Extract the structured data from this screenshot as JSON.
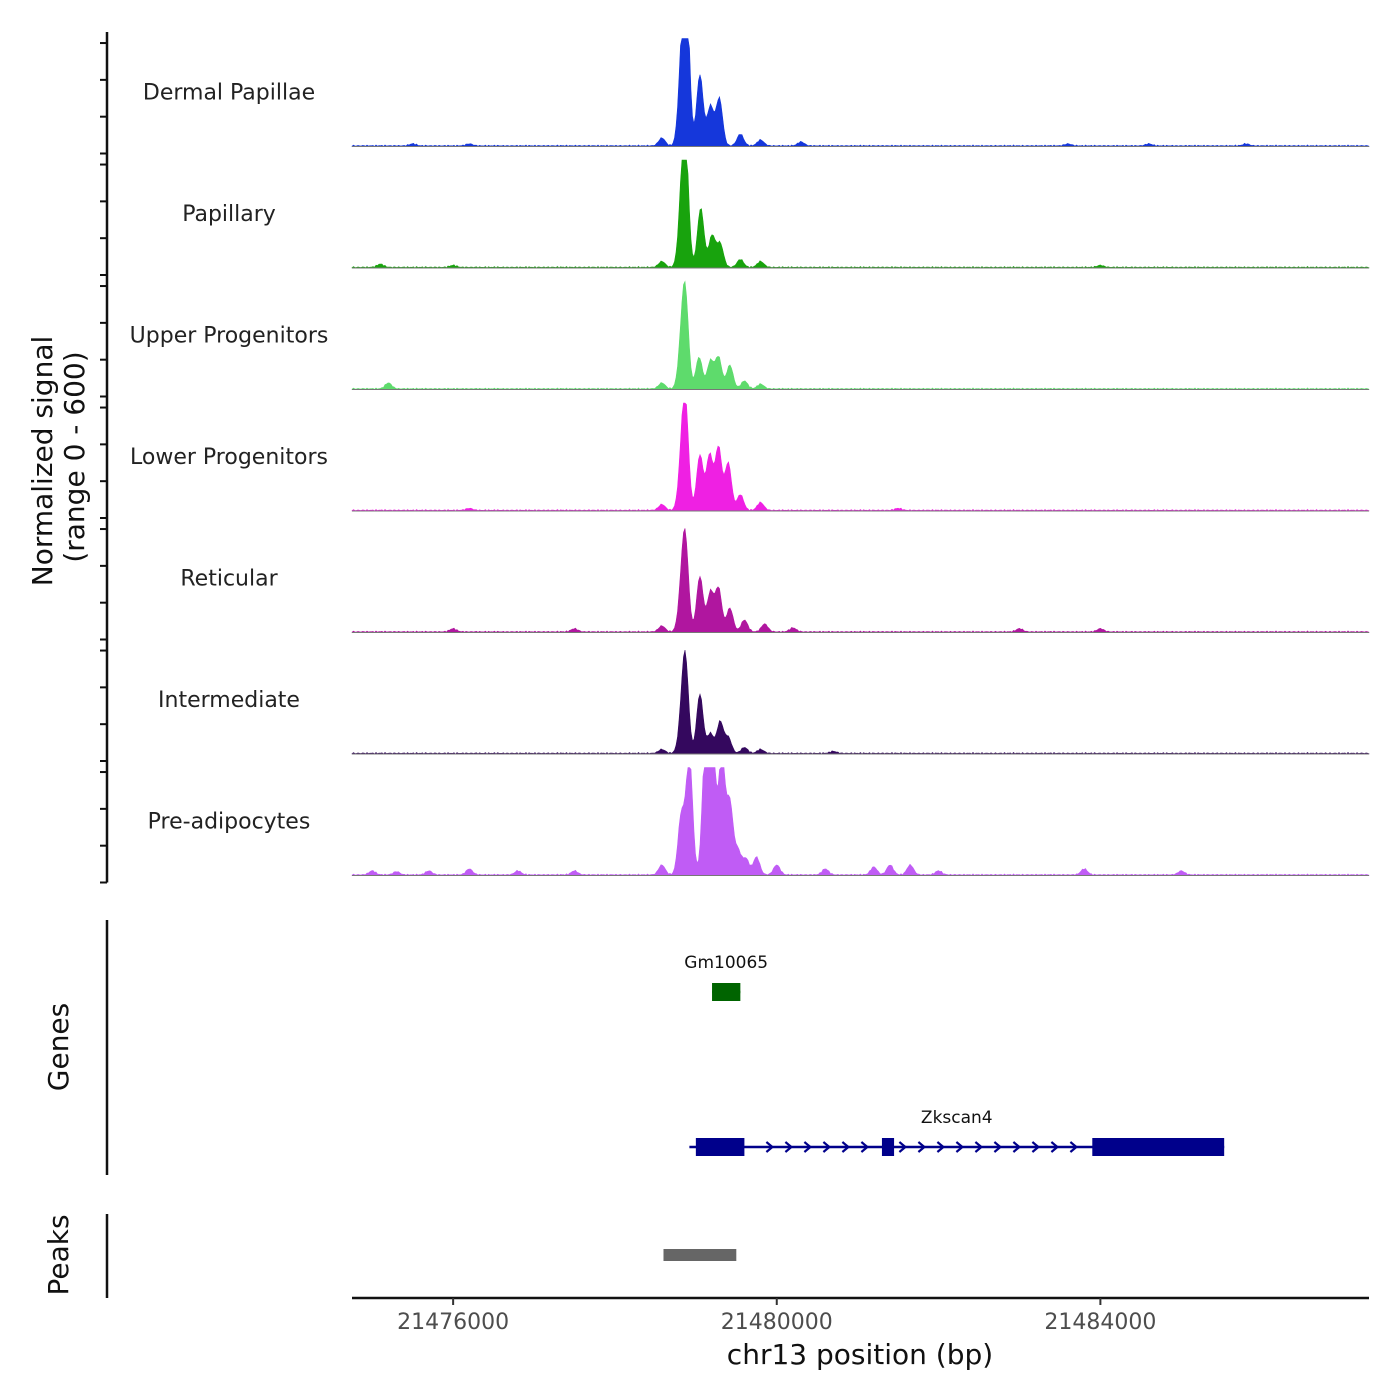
{
  "chart_data": {
    "type": "area",
    "chromosome": "chr13",
    "xlim": [
      21474750,
      21487320
    ],
    "xlabel": "chr13 position (bp)",
    "xticks": [
      21476000,
      21480000,
      21484000
    ],
    "ylabel": "Normalized signal",
    "ylabel_range": "(range 0 - 600)",
    "ylim": [
      0,
      600
    ],
    "tracks": [
      {
        "name": "Dermal Papillae",
        "color": "#1537db",
        "peaks": [
          [
            21478880,
            410
          ],
          [
            21478820,
            170
          ],
          [
            21479050,
            180
          ],
          [
            21479180,
            100
          ],
          [
            21479290,
            120
          ],
          [
            21479550,
            30
          ],
          [
            21479800,
            15
          ],
          [
            21480300,
            10
          ],
          [
            21478580,
            20
          ],
          [
            21475500,
            5
          ],
          [
            21476200,
            5
          ],
          [
            21483600,
            5
          ],
          [
            21484600,
            5
          ],
          [
            21485800,
            5
          ]
        ]
      },
      {
        "name": "Papillary",
        "color": "#18a30d",
        "peaks": [
          [
            21478870,
            310
          ],
          [
            21478820,
            120
          ],
          [
            21479060,
            150
          ],
          [
            21479200,
            80
          ],
          [
            21479300,
            60
          ],
          [
            21479550,
            20
          ],
          [
            21479800,
            15
          ],
          [
            21478580,
            15
          ],
          [
            21475100,
            8
          ],
          [
            21476000,
            5
          ],
          [
            21484000,
            5
          ]
        ]
      },
      {
        "name": "Upper Progenitors",
        "color": "#5edb6c",
        "peaks": [
          [
            21478870,
            225
          ],
          [
            21478820,
            90
          ],
          [
            21479040,
            80
          ],
          [
            21479180,
            70
          ],
          [
            21479280,
            80
          ],
          [
            21479420,
            60
          ],
          [
            21479600,
            20
          ],
          [
            21479800,
            12
          ],
          [
            21478580,
            15
          ],
          [
            21475200,
            15
          ]
        ]
      },
      {
        "name": "Lower Progenitors",
        "color": "#ef20e3",
        "peaks": [
          [
            21478870,
            260
          ],
          [
            21478820,
            90
          ],
          [
            21479050,
            140
          ],
          [
            21479170,
            140
          ],
          [
            21479280,
            160
          ],
          [
            21479400,
            120
          ],
          [
            21479550,
            40
          ],
          [
            21479800,
            20
          ],
          [
            21478580,
            15
          ],
          [
            21476200,
            5
          ],
          [
            21481500,
            5
          ]
        ]
      },
      {
        "name": "Reticular",
        "color": "#b0169f",
        "peaks": [
          [
            21478870,
            220
          ],
          [
            21478820,
            80
          ],
          [
            21479050,
            140
          ],
          [
            21479180,
            100
          ],
          [
            21479280,
            110
          ],
          [
            21479420,
            60
          ],
          [
            21479600,
            30
          ],
          [
            21479850,
            20
          ],
          [
            21480200,
            10
          ],
          [
            21478580,
            15
          ],
          [
            21476000,
            8
          ],
          [
            21477500,
            8
          ],
          [
            21483000,
            8
          ],
          [
            21484000,
            8
          ]
        ]
      },
      {
        "name": "Intermediate",
        "color": "#34085e",
        "peaks": [
          [
            21478870,
            230
          ],
          [
            21478820,
            60
          ],
          [
            21479050,
            150
          ],
          [
            21479180,
            50
          ],
          [
            21479300,
            80
          ],
          [
            21479400,
            40
          ],
          [
            21479600,
            15
          ],
          [
            21479800,
            10
          ],
          [
            21478580,
            10
          ],
          [
            21480700,
            5
          ]
        ]
      },
      {
        "name": "Pre-adipocytes",
        "color": "#c05cf5",
        "peaks": [
          [
            21478920,
            300
          ],
          [
            21478820,
            150
          ],
          [
            21479120,
            330
          ],
          [
            21479200,
            380
          ],
          [
            21479320,
            300
          ],
          [
            21479420,
            180
          ],
          [
            21479520,
            60
          ],
          [
            21479620,
            40
          ],
          [
            21479750,
            45
          ],
          [
            21480000,
            25
          ],
          [
            21478580,
            25
          ],
          [
            21475000,
            10
          ],
          [
            21475300,
            8
          ],
          [
            21475700,
            10
          ],
          [
            21476200,
            15
          ],
          [
            21476800,
            10
          ],
          [
            21477500,
            10
          ],
          [
            21480600,
            15
          ],
          [
            21481200,
            20
          ],
          [
            21481400,
            25
          ],
          [
            21481650,
            25
          ],
          [
            21482000,
            10
          ],
          [
            21483800,
            15
          ],
          [
            21485000,
            10
          ]
        ]
      }
    ],
    "genes": [
      {
        "name": "Gm10065",
        "start": 21479200,
        "end": 21479550,
        "strand": "-",
        "exons": [
          [
            21479200,
            21479550
          ]
        ]
      },
      {
        "name": "Zkscan4",
        "start": 21478920,
        "end": 21485530,
        "strand": "+",
        "exons": [
          [
            21479000,
            21479600
          ],
          [
            21481300,
            21481450
          ],
          [
            21483900,
            21485530
          ]
        ]
      }
    ],
    "peaks_track": [
      [
        21478600,
        21479500
      ]
    ],
    "panel_titles": {
      "genes": "Genes",
      "peaks": "Peaks"
    }
  }
}
